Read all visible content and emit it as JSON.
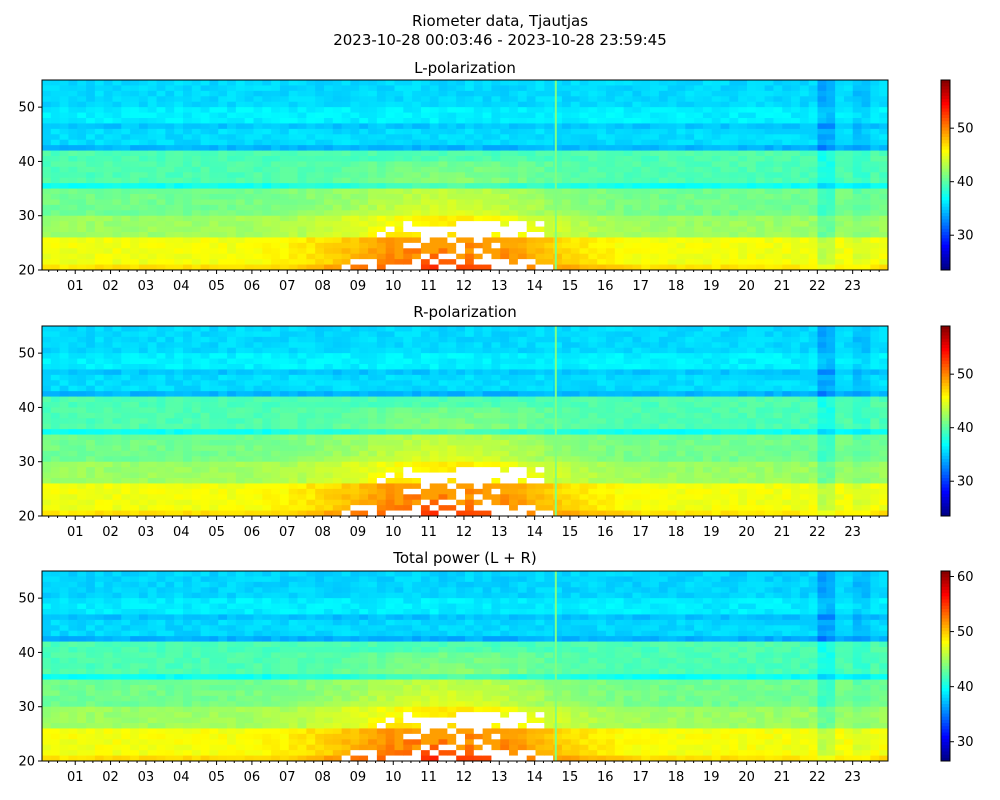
{
  "figure": {
    "title_line1": "Riometer data, Tjautjas",
    "title_line2": "2023-10-28 00:03:46 - 2023-10-28 23:59:45"
  },
  "chart_data": [
    {
      "type": "heatmap",
      "title": "L-polarization",
      "xlabel": "",
      "ylabel": "",
      "x_range_hours": [
        0.06,
        24.0
      ],
      "x_tick_labels": [
        "01",
        "02",
        "03",
        "04",
        "05",
        "06",
        "07",
        "08",
        "09",
        "10",
        "11",
        "12",
        "13",
        "14",
        "15",
        "16",
        "17",
        "18",
        "19",
        "20",
        "21",
        "22",
        "23"
      ],
      "ylim": [
        20,
        55
      ],
      "y_ticks": [
        20,
        30,
        40,
        50
      ],
      "colorbar": {
        "colormap": "jet",
        "vmin": 23.5,
        "vmax": 59,
        "ticks": [
          30,
          40,
          50
        ]
      },
      "features": {
        "saturated_band_hours": [
          8.0,
          14.6
        ],
        "saturated_band_y": [
          20.5,
          29
        ],
        "spike_hour": 14.6,
        "dim_band_hours": [
          22.0,
          22.5
        ]
      }
    },
    {
      "type": "heatmap",
      "title": "R-polarization",
      "xlabel": "",
      "ylabel": "",
      "x_range_hours": [
        0.06,
        24.0
      ],
      "x_tick_labels": [
        "01",
        "02",
        "03",
        "04",
        "05",
        "06",
        "07",
        "08",
        "09",
        "10",
        "11",
        "12",
        "13",
        "14",
        "15",
        "16",
        "17",
        "18",
        "19",
        "20",
        "21",
        "22",
        "23"
      ],
      "ylim": [
        20,
        55
      ],
      "y_ticks": [
        20,
        30,
        40,
        50
      ],
      "colorbar": {
        "colormap": "jet",
        "vmin": 23.5,
        "vmax": 59,
        "ticks": [
          30,
          40,
          50
        ]
      },
      "features": {
        "saturated_band_hours": [
          8.0,
          14.6
        ],
        "saturated_band_y": [
          20.5,
          29
        ],
        "spike_hour": 14.6,
        "dim_band_hours": [
          22.0,
          22.5
        ]
      }
    },
    {
      "type": "heatmap",
      "title": "Total power (L + R)",
      "xlabel": "",
      "ylabel": "",
      "x_range_hours": [
        0.06,
        24.0
      ],
      "x_tick_labels": [
        "01",
        "02",
        "03",
        "04",
        "05",
        "06",
        "07",
        "08",
        "09",
        "10",
        "11",
        "12",
        "13",
        "14",
        "15",
        "16",
        "17",
        "18",
        "19",
        "20",
        "21",
        "22",
        "23"
      ],
      "ylim": [
        20,
        55
      ],
      "y_ticks": [
        20,
        30,
        40,
        50
      ],
      "colorbar": {
        "colormap": "jet",
        "vmin": 26.5,
        "vmax": 61,
        "ticks": [
          30,
          40,
          50,
          60
        ]
      },
      "features": {
        "saturated_band_hours": [
          8.0,
          14.6
        ],
        "saturated_band_y": [
          20.5,
          29
        ],
        "spike_hour": 14.6,
        "dim_band_hours": [
          22.0,
          22.5
        ]
      }
    }
  ]
}
